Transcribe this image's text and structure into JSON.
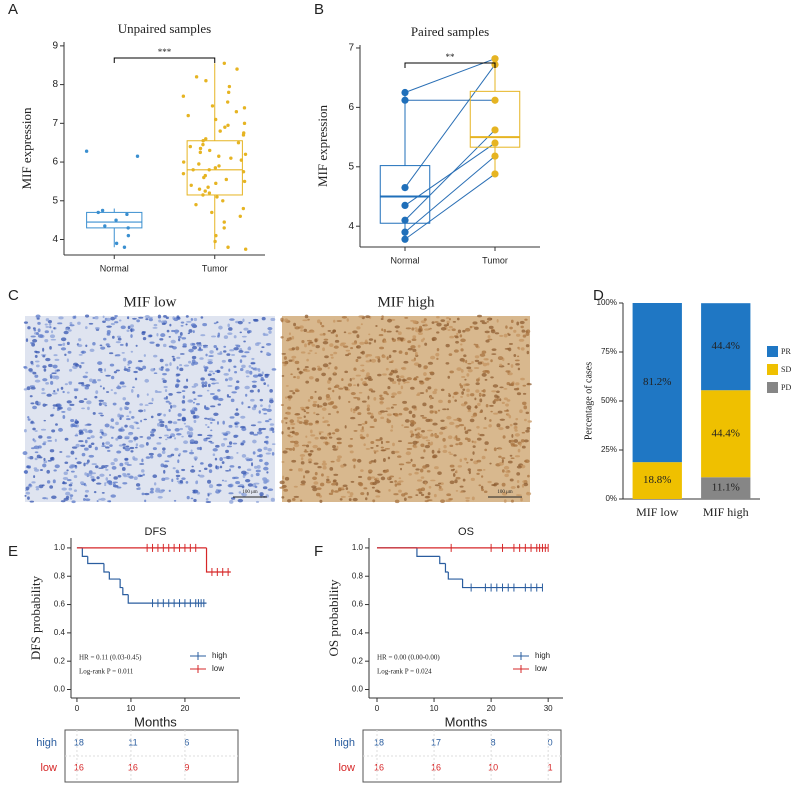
{
  "chart_data": [
    {
      "panel": "A",
      "type": "box",
      "title": "Unpaired samples",
      "ylabel": "MIF expression",
      "categories": [
        "Normal",
        "Tumor"
      ],
      "colors": [
        "#3a8fd0",
        "#e6b422"
      ],
      "paired": false,
      "boxes": [
        {
          "whisker_low": 3.8,
          "q1": 4.3,
          "median": 4.45,
          "q3": 4.7,
          "whisker_high": 4.8
        },
        {
          "whisker_low": 3.75,
          "q1": 5.15,
          "median": 5.8,
          "q3": 6.55,
          "whisker_high": 8.55
        }
      ],
      "points": [
        [
          6.28,
          6.15,
          4.75,
          4.7,
          4.65,
          4.5,
          4.35,
          4.3,
          4.1,
          3.9,
          3.8
        ],
        [
          8.55,
          8.4,
          8.2,
          8.1,
          7.95,
          7.8,
          7.7,
          7.55,
          7.45,
          7.4,
          7.3,
          7.2,
          7.1,
          7.0,
          6.95,
          6.9,
          6.8,
          6.75,
          6.7,
          6.6,
          6.55,
          6.5,
          6.45,
          6.4,
          6.35,
          6.3,
          6.25,
          6.2,
          6.15,
          6.1,
          6.05,
          6.0,
          5.95,
          5.9,
          5.85,
          5.8,
          5.8,
          5.75,
          5.7,
          5.65,
          5.6,
          5.55,
          5.5,
          5.45,
          5.4,
          5.35,
          5.3,
          5.25,
          5.2,
          5.15,
          5.1,
          5.0,
          4.9,
          4.8,
          4.7,
          4.6,
          4.45,
          4.3,
          4.1,
          3.95,
          3.8,
          3.75
        ]
      ],
      "ylim": [
        3.6,
        9.1
      ],
      "yticks": [
        4,
        5,
        6,
        7,
        8,
        9
      ],
      "annotation": "***"
    },
    {
      "panel": "B",
      "type": "box",
      "title": "Paired samples",
      "ylabel": "MIF expression",
      "categories": [
        "Normal",
        "Tumor"
      ],
      "colors": [
        "#1f6fba",
        "#e6b422"
      ],
      "paired": true,
      "line_color": "#2a6fb5",
      "boxes": [
        {
          "whisker_low": 3.78,
          "q1": 4.05,
          "median": 4.5,
          "q3": 5.02,
          "whisker_high": 6.25
        },
        {
          "whisker_low": 4.88,
          "q1": 5.33,
          "median": 5.5,
          "q3": 6.27,
          "whisker_high": 6.82
        }
      ],
      "points": [
        [
          6.25,
          6.12,
          4.65,
          4.35,
          4.1,
          3.9,
          3.78
        ],
        [
          6.82,
          6.12,
          6.72,
          5.4,
          5.62,
          5.18,
          4.88
        ]
      ],
      "ylim": [
        3.65,
        7.05
      ],
      "yticks": [
        4,
        5,
        6,
        7
      ],
      "annotation": "**"
    },
    {
      "panel": "C",
      "type": "image",
      "images": [
        {
          "title": "MIF low",
          "scale_label": "100 μm"
        },
        {
          "title": "MIF high",
          "scale_label": "100 μm"
        }
      ]
    },
    {
      "panel": "D",
      "type": "stacked_bar",
      "ylabel": "Percentage of cases",
      "categories": [
        "MIF low",
        "MIF high"
      ],
      "series": [
        {
          "name": "PR",
          "color": "#1f77c4",
          "values": [
            81.2,
            44.4
          ],
          "value_labels": [
            "81.2%",
            "44.4%"
          ]
        },
        {
          "name": "SD",
          "color": "#efc000",
          "values": [
            18.8,
            44.4
          ],
          "value_labels": [
            "18.8%",
            "44.4%"
          ]
        },
        {
          "name": "PD",
          "color": "#868686",
          "values": [
            0,
            11.1
          ],
          "value_labels": [
            null,
            "11.1%"
          ]
        }
      ],
      "ylim": [
        0,
        100
      ],
      "yticks": [
        {
          "value": 0,
          "label": "0%"
        },
        {
          "value": 25,
          "label": "25%"
        },
        {
          "value": 50,
          "label": "50%"
        },
        {
          "value": 75,
          "label": "75%"
        },
        {
          "value": 100,
          "label": "100%"
        }
      ]
    },
    {
      "panel": "E",
      "type": "km",
      "title": "DFS",
      "ylabel": "DFS probability",
      "xlabel": "Months",
      "hr_text": "HR = 0.11 (0.03-0.45)",
      "p_text": "Log-rank P = 0.011",
      "series": [
        {
          "name": "high",
          "color": "#2a5d9f",
          "x": [
            0,
            1,
            2,
            5,
            6,
            8,
            8.5,
            9.5,
            24
          ],
          "values": [
            1,
            0.94,
            0.89,
            0.83,
            0.78,
            0.72,
            0.67,
            0.61,
            0.61
          ],
          "censor_x": [
            14,
            15,
            16,
            17,
            18,
            19,
            20,
            21,
            22,
            22.5,
            23,
            23.5
          ],
          "at_risk": [
            18,
            11,
            6
          ]
        },
        {
          "name": "low",
          "color": "#d62728",
          "x": [
            0,
            24,
            28.5
          ],
          "values": [
            1,
            0.83,
            0.83
          ],
          "censor_x": [
            13,
            14,
            15,
            16,
            17,
            18,
            19,
            20,
            21,
            22,
            25,
            26,
            27,
            28
          ],
          "at_risk": [
            16,
            16,
            9
          ]
        }
      ],
      "xlim": [
        -1.1,
        30.2
      ],
      "xticks": [
        0,
        10,
        20
      ],
      "ylim": [
        -0.06,
        1.07
      ],
      "yticks": [
        {
          "value": 0,
          "label": "0.0"
        },
        0.2,
        0.4,
        0.6,
        0.8,
        {
          "value": 1,
          "label": "1.0"
        }
      ]
    },
    {
      "panel": "F",
      "type": "km",
      "title": "OS",
      "ylabel": "OS probability",
      "xlabel": "Months",
      "hr_text": "HR = 0.00 (0.00-0.00)",
      "p_text": "Log-rank P = 0.024",
      "series": [
        {
          "name": "high",
          "color": "#2a5d9f",
          "x": [
            0,
            7,
            11,
            12,
            12.5,
            15,
            29
          ],
          "values": [
            1,
            0.94,
            0.89,
            0.83,
            0.78,
            0.72,
            0.72
          ],
          "censor_x": [
            16.5,
            19,
            20,
            21,
            22,
            23,
            24,
            26,
            27,
            28,
            29
          ],
          "at_risk": [
            18,
            17,
            8,
            0
          ]
        },
        {
          "name": "low",
          "color": "#d62728",
          "x": [
            0,
            30
          ],
          "values": [
            1,
            1
          ],
          "censor_x": [
            13,
            20,
            22,
            24,
            25,
            26,
            27,
            28,
            28.5,
            29,
            29.5,
            30
          ],
          "at_risk": [
            16,
            16,
            10,
            1
          ]
        }
      ],
      "xlim": [
        -1.4,
        32.6
      ],
      "xticks": [
        0,
        10,
        20,
        30
      ],
      "ylim": [
        -0.06,
        1.07
      ],
      "yticks": [
        {
          "value": 0,
          "label": "0.0"
        },
        0.2,
        0.4,
        0.6,
        0.8,
        {
          "value": 1,
          "label": "1.0"
        }
      ]
    }
  ]
}
